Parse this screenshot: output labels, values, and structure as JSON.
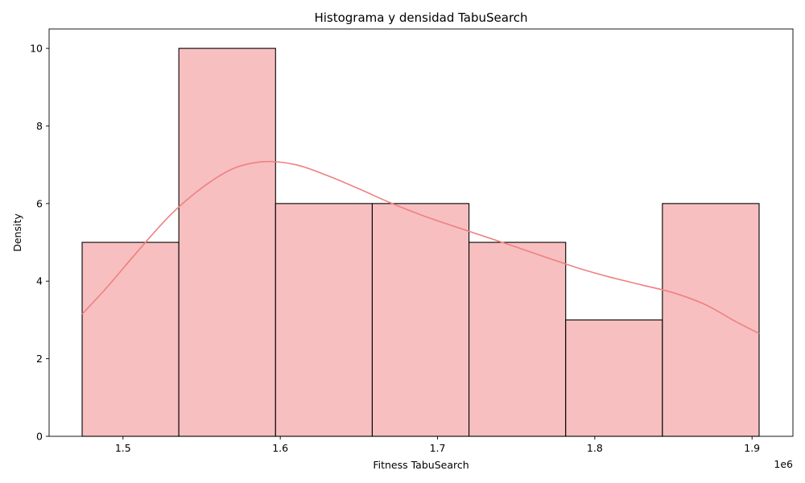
{
  "chart_data": {
    "type": "bar",
    "title": "Histograma y densidad TabuSearch",
    "xlabel": "Fitness TabuSearch",
    "ylabel": "Density",
    "x_offset_text": "1e6",
    "xlim": [
      1.453,
      1.926
    ],
    "ylim": [
      0,
      10.5
    ],
    "x_ticks": [
      1.5,
      1.6,
      1.7,
      1.8,
      1.9
    ],
    "y_ticks": [
      0,
      2,
      4,
      6,
      8,
      10
    ],
    "bin_edges": [
      1.474,
      1.5355,
      1.597,
      1.6585,
      1.72,
      1.7815,
      1.843,
      1.9045
    ],
    "values": [
      5,
      10,
      6,
      6,
      5,
      3,
      6
    ],
    "kde": {
      "name": "",
      "x": [
        1.474,
        1.49,
        1.51,
        1.53,
        1.55,
        1.57,
        1.59,
        1.61,
        1.63,
        1.65,
        1.67,
        1.69,
        1.71,
        1.73,
        1.75,
        1.77,
        1.79,
        1.81,
        1.83,
        1.85,
        1.87,
        1.89,
        1.9045
      ],
      "y": [
        3.15,
        3.85,
        4.8,
        5.7,
        6.4,
        6.9,
        7.08,
        7.0,
        6.72,
        6.38,
        6.02,
        5.7,
        5.42,
        5.15,
        4.88,
        4.6,
        4.33,
        4.1,
        3.9,
        3.7,
        3.4,
        2.95,
        2.65
      ]
    },
    "colors": {
      "bar_fill": "#f7bfc0",
      "bar_edge": "#000000",
      "kde_line": "#f08080"
    },
    "grid": false,
    "legend": "none"
  }
}
